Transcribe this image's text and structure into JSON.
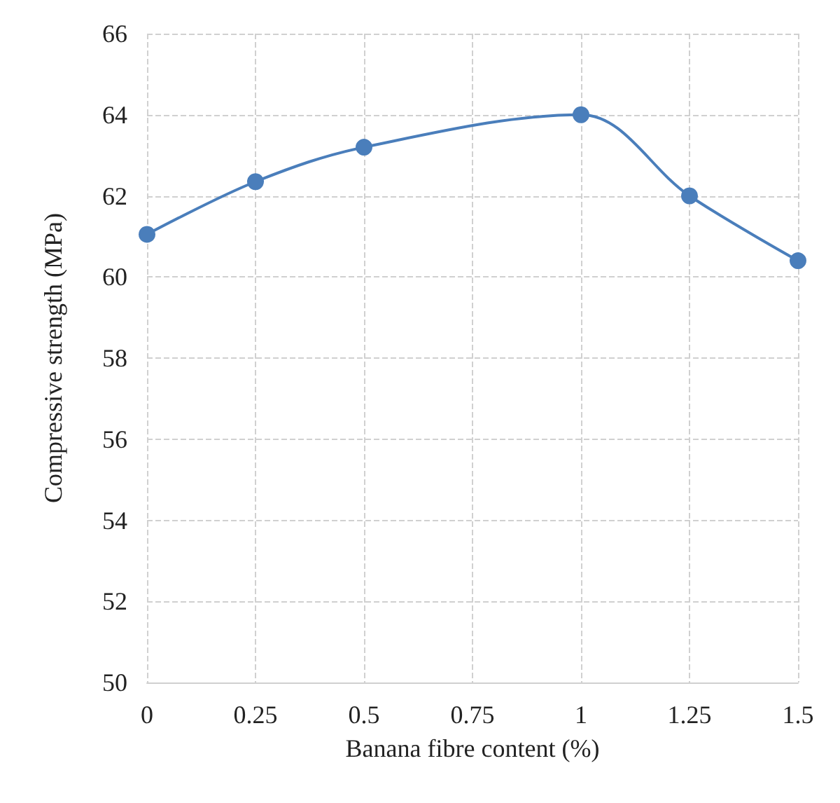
{
  "chart_data": {
    "type": "line",
    "xlabel": "Banana fibre content (%)",
    "ylabel": "Compressive strength (MPa)",
    "series": [
      {
        "color": "#4a7ebb",
        "values": [
          61.05,
          62.35,
          63.2,
          64.0,
          62.0,
          60.4
        ],
        "x": [
          0,
          0.25,
          0.5,
          1,
          1.25,
          1.5
        ]
      }
    ],
    "xlim": [
      0,
      1.5
    ],
    "xticks": [
      0,
      0.25,
      0.5,
      0.75,
      1,
      1.25,
      1.5
    ],
    "ylim": [
      50,
      66
    ],
    "yticks": [
      50,
      52,
      54,
      56,
      58,
      60,
      62,
      64,
      66
    ],
    "grid": true,
    "marker": "circle",
    "line_style": "solid"
  }
}
